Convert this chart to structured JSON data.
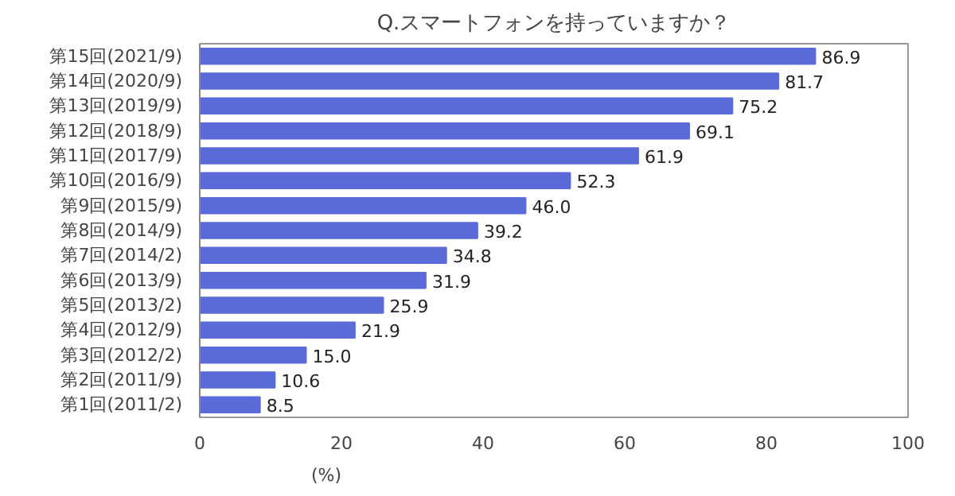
{
  "chart_data": {
    "type": "bar",
    "orientation": "horizontal",
    "title": "Q.スマートフォンを持っていますか？",
    "xlabel": "(%)",
    "categories": [
      "第15回(2021/9)",
      "第14回(2020/9)",
      "第13回(2019/9)",
      "第12回(2018/9)",
      "第11回(2017/9)",
      "第10回(2016/9)",
      "第9回(2015/9)",
      "第8回(2014/9)",
      "第7回(2014/2)",
      "第6回(2013/9)",
      "第5回(2013/2)",
      "第4回(2012/9)",
      "第3回(2012/2)",
      "第2回(2011/9)",
      "第1回(2011/2)"
    ],
    "values": [
      86.9,
      81.7,
      75.2,
      69.1,
      61.9,
      52.3,
      46.0,
      39.2,
      34.8,
      31.9,
      25.9,
      21.9,
      15.0,
      10.6,
      8.5
    ],
    "value_labels": [
      "86.9",
      "81.7",
      "75.2",
      "69.1",
      "61.9",
      "52.3",
      "46.0",
      "39.2",
      "34.8",
      "31.9",
      "25.9",
      "21.9",
      "15.0",
      "10.6",
      "8.5"
    ],
    "color": "#5a6ad8",
    "xlim": [
      0,
      100
    ],
    "xticks": [
      0,
      20,
      40,
      60,
      80,
      100
    ],
    "grid": false
  }
}
